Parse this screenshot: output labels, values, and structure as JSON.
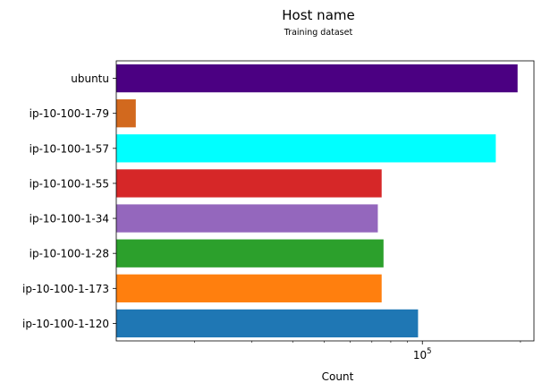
{
  "chart_data": {
    "type": "bar",
    "orientation": "horizontal",
    "title": "Host name",
    "subtitle": "Training dataset",
    "xlabel": "Count",
    "ylabel": "",
    "xscale": "log",
    "xlim": [
      11500,
      220000
    ],
    "x_tick_labels": [
      "10^5"
    ],
    "grid": false,
    "categories": [
      "ip-10-100-1-120",
      "ip-10-100-1-173",
      "ip-10-100-1-28",
      "ip-10-100-1-34",
      "ip-10-100-1-55",
      "ip-10-100-1-57",
      "ip-10-100-1-79",
      "ubuntu"
    ],
    "values": [
      97000,
      75000,
      76000,
      73000,
      75000,
      168000,
      13200,
      196000
    ],
    "colors": [
      "#1f77b4",
      "#ff7f0e",
      "#2ca02c",
      "#9467bd",
      "#d62728",
      "#00ffff",
      "#d2691e",
      "#4b0082"
    ]
  }
}
